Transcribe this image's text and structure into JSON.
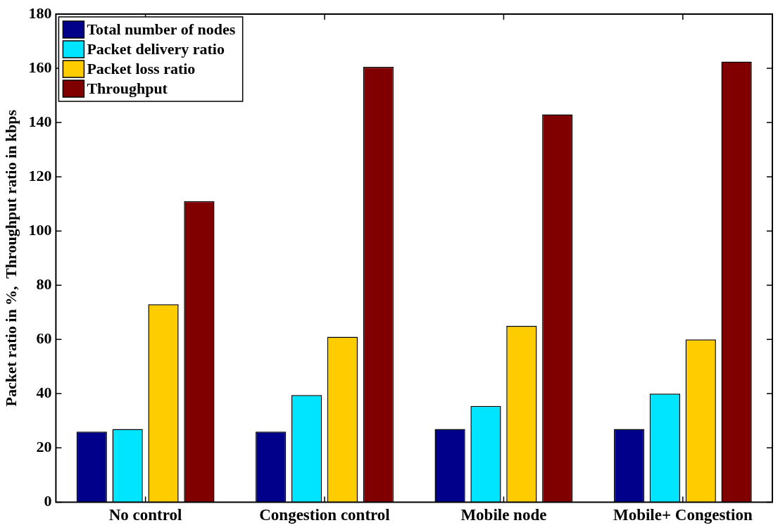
{
  "chart_data": {
    "type": "bar",
    "ylabel": "Packet ratio in %,  Throughput ratio in kbps",
    "categories": [
      "No control",
      "Congestion control",
      "Mobile node",
      "Mobile+ Congestion"
    ],
    "series": [
      {
        "name": "Total number of nodes",
        "color": "#00008b",
        "values": [
          26,
          26,
          27,
          27
        ]
      },
      {
        "name": "Packet delivery ratio",
        "color": "#00e5ff",
        "values": [
          27,
          39.5,
          35.5,
          40
        ]
      },
      {
        "name": "Packet loss ratio",
        "color": "#ffcc00",
        "values": [
          73,
          61,
          65,
          60
        ]
      },
      {
        "name": "Throughput",
        "color": "#800000",
        "values": [
          111,
          160.5,
          143,
          162.5
        ]
      }
    ],
    "ylim": [
      0,
      180
    ],
    "yticks": [
      0,
      20,
      40,
      60,
      80,
      100,
      120,
      140,
      160,
      180
    ],
    "grid": false,
    "legend": "top left"
  }
}
